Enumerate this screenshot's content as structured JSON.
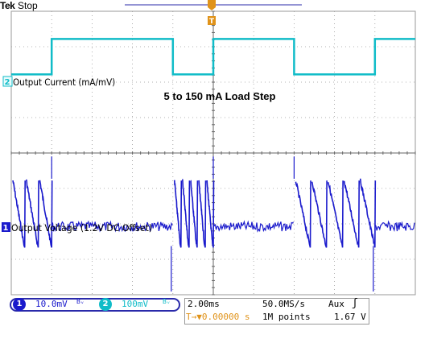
{
  "brand": "Tek",
  "run_state": "Stop",
  "colors": {
    "ch1": "#1a1acc",
    "ch2": "#10bcc8",
    "trigger": "#e0931a",
    "grid": "#9a9a9a"
  },
  "icons": {
    "bandwidth": "bandwidth-limit-icon",
    "trigger_slope": "rising-edge-icon",
    "trigger_marker": "trigger-position-marker-icon"
  },
  "status": {
    "ch1_label": "1",
    "ch1_scale": "10.0mV",
    "ch1_bw": "Bᵥ",
    "ch2_label": "2",
    "ch2_scale": "100mV",
    "ch2_bw": "Bᵥ",
    "timebase": "2.00ms",
    "sample_rate": "50.0MS/s",
    "trigger_source": "Aux",
    "trigger_slope": "ʃ",
    "trigger_position": "T→▼0.00000 s",
    "record_length": "1M points",
    "trigger_level": "1.67 V"
  },
  "chart_data": {
    "type": "line",
    "annotation": "5 to 150 mA Load Step",
    "x_unit": "ms",
    "x_per_div": 2.0,
    "x_range": [
      -10,
      10
    ],
    "divisions_x": 10,
    "divisions_y": 8,
    "series": [
      {
        "name": "Output Current (mA/mV)",
        "channel": "2",
        "scale": "100mV/div",
        "level_divs": {
          "low": 1.3,
          "high": 2.3
        },
        "steps": [
          {
            "t": -8.0,
            "state": "high"
          },
          {
            "t": -2.0,
            "state": "low"
          },
          {
            "t": 0.0,
            "state": "high"
          },
          {
            "t": 4.0,
            "state": "low"
          },
          {
            "t": 8.0,
            "state": "high"
          }
        ],
        "start_state": "low"
      },
      {
        "name": "Output Voltage (1.2V DC Offset)",
        "channel": "1",
        "scale": "10.0mV/div",
        "sawtooth_low_div": -0.35,
        "sawtooth_high_div": 1.45,
        "noise_center_div": 0.15,
        "segments": [
          {
            "t0": -10.0,
            "t1": -8.0,
            "mode": "sawtooth",
            "teeth": 3
          },
          {
            "t0": -8.0,
            "t1": -2.0,
            "mode": "noise"
          },
          {
            "t0": -2.0,
            "t1": 0.0,
            "mode": "sawtooth",
            "teeth": 5
          },
          {
            "t0": 0.0,
            "t1": 4.0,
            "mode": "noise"
          },
          {
            "t0": 4.0,
            "t1": 8.0,
            "mode": "sawtooth",
            "teeth": 5
          },
          {
            "t0": 8.0,
            "t1": 10.0,
            "mode": "noise"
          }
        ]
      }
    ]
  }
}
